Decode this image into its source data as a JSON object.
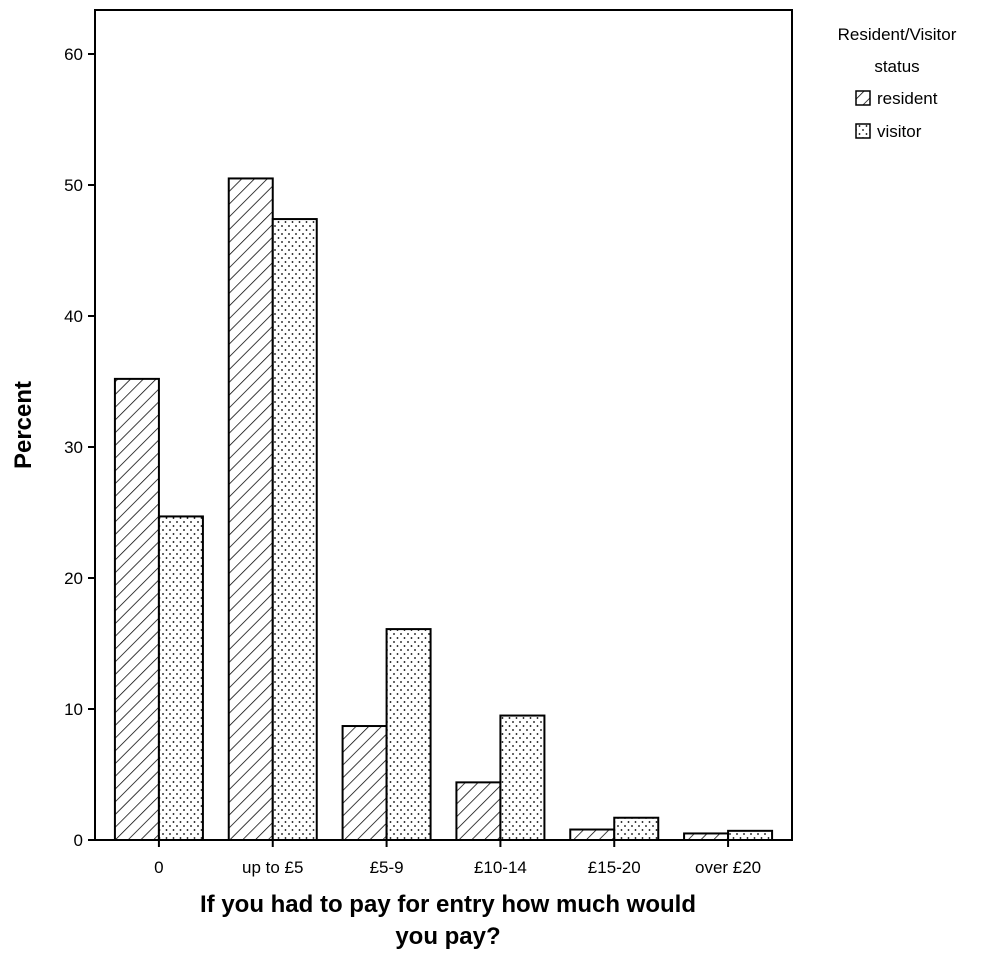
{
  "chart_data": {
    "type": "bar",
    "categories": [
      "0",
      "up to £5",
      "£5-9",
      "£10-14",
      "£15-20",
      "over £20"
    ],
    "series": [
      {
        "name": "resident",
        "pattern": "hatch",
        "values": [
          35.2,
          50.5,
          8.7,
          4.4,
          0.8,
          0.5
        ]
      },
      {
        "name": "visitor",
        "pattern": "dots",
        "values": [
          24.7,
          47.4,
          16.1,
          9.5,
          1.7,
          0.7
        ]
      }
    ],
    "title": "",
    "xlabel_lines": [
      "If you had to pay for entry how much would",
      "you pay?"
    ],
    "ylabel": "Percent",
    "ylim": [
      0,
      65
    ],
    "yticks": [
      "0",
      "10",
      "20",
      "30",
      "40",
      "50",
      "60"
    ],
    "grid": false,
    "legend": {
      "title_lines": [
        "Resident/Visitor",
        "status"
      ],
      "placement": "top-right, outside plot"
    },
    "colors": {
      "background": "#ffffff",
      "ink": "#000000"
    }
  }
}
